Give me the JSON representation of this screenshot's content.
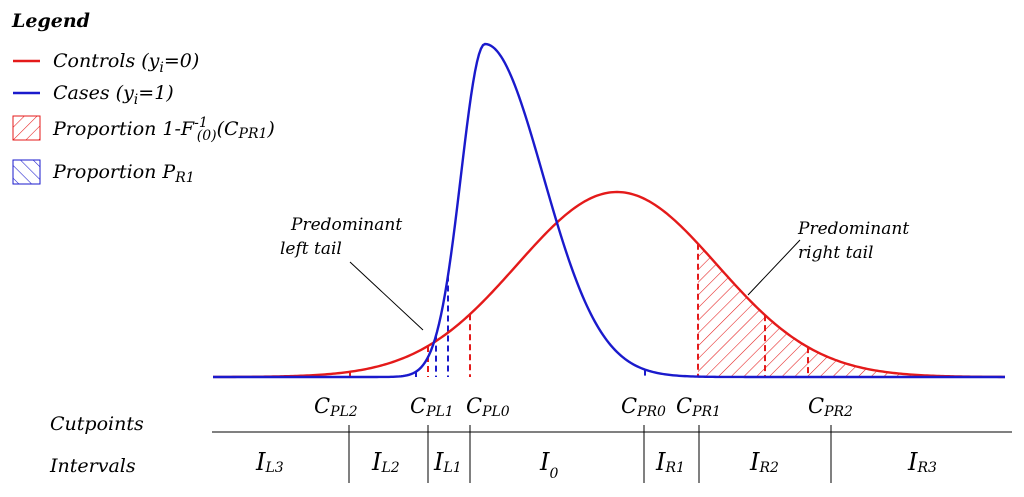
{
  "legend": {
    "title": "Legend",
    "controls": {
      "label": "Controls (y",
      "sub": "i",
      "tail": "=0)",
      "color": "#e41a1a"
    },
    "cases": {
      "label": "Cases (y",
      "sub": "i",
      "tail": "=1)",
      "color": "#1a1acc"
    },
    "prop_controls": {
      "label": "Proportion 1-F",
      "sup": "-1",
      "sub": "(0)",
      "tail_open": "(C",
      "tail_sub": "PR1",
      "tail_close": ")"
    },
    "prop_cases": {
      "label": "Proportion P",
      "sub": "R1"
    }
  },
  "annotations": {
    "left_line1": "Predominant",
    "left_line2": "left tail",
    "right_line1": "Predominant",
    "right_line2": "right tail"
  },
  "rows": {
    "cutpoints": "Cutpoints",
    "intervals": "Intervals"
  },
  "cutpoints": [
    {
      "main": "C",
      "sub": "PL2"
    },
    {
      "main": "C",
      "sub": "PL1"
    },
    {
      "main": "C",
      "sub": "PL0"
    },
    {
      "main": "C",
      "sub": "PR0"
    },
    {
      "main": "C",
      "sub": "PR1"
    },
    {
      "main": "C",
      "sub": "PR2"
    }
  ],
  "intervals": [
    {
      "main": "I",
      "sub": "L3"
    },
    {
      "main": "I",
      "sub": "L2"
    },
    {
      "main": "I",
      "sub": "L1"
    },
    {
      "main": "I",
      "sub": "0"
    },
    {
      "main": "I",
      "sub": "R1"
    },
    {
      "main": "I",
      "sub": "R2"
    },
    {
      "main": "I",
      "sub": "R3"
    }
  ]
}
